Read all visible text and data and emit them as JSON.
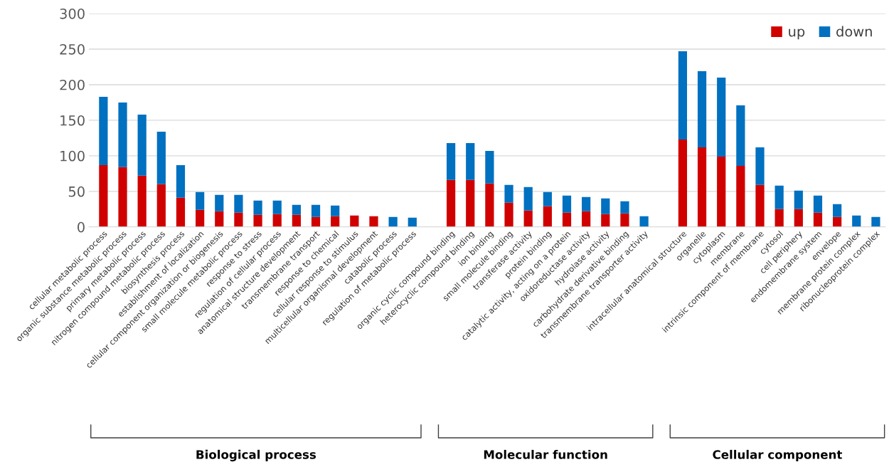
{
  "chart_data": {
    "type": "bar",
    "stacked": true,
    "grid": "y",
    "legend": "top right",
    "categories": [
      "cellular metabolic process",
      "organic substance metabolic process",
      "primary metabolic process",
      "nitrogen compound metabolic process",
      "biosynthesis process",
      "establishment of localization",
      "cellular component organization or biogenesis",
      "small molecule metabolic process",
      "response to stress",
      "regulation of cellular process",
      "anatomical structure development",
      "transmembrane transport",
      "response to chemical",
      "cellular response to stimulus",
      "multicellular organismal development",
      "catabolic process",
      "regulation of metabolic process",
      null,
      "organic cyclic compound binding",
      "heterocyclic compound binding",
      "ion binding",
      "small molecule binding",
      "transferase activity",
      "protein binding",
      "catalytic activity, acting on a protein",
      "oxidoreductase activity",
      "hydrolase activity",
      "carbohydrate derivative binding",
      "transmembrane transporter activity",
      null,
      "intracellular anatomical structure",
      "organelle",
      "cytoplasm",
      "membrane",
      "intrinsic component of membrane",
      "cytosol",
      "cell periphery",
      "endomembrane system",
      "envelope",
      "membrane protein complex",
      "ribonucleoprotein complex"
    ],
    "series": [
      {
        "name": "up",
        "color": "#d00000",
        "values": [
          87,
          84,
          72,
          60,
          41,
          24,
          22,
          20,
          17,
          18,
          17,
          14,
          15,
          16,
          15,
          0,
          0,
          null,
          66,
          66,
          61,
          34,
          23,
          29,
          20,
          22,
          18,
          19,
          0,
          null,
          123,
          112,
          99,
          86,
          59,
          25,
          25,
          20,
          14,
          0,
          0
        ]
      },
      {
        "name": "down",
        "color": "#0070c0",
        "values": [
          96,
          91,
          86,
          74,
          46,
          25,
          23,
          25,
          20,
          19,
          14,
          17,
          15,
          0,
          0,
          14,
          13,
          null,
          52,
          52,
          46,
          25,
          33,
          20,
          24,
          20,
          22,
          17,
          15,
          null,
          124,
          107,
          111,
          85,
          53,
          33,
          26,
          24,
          18,
          16,
          14
        ]
      }
    ],
    "ylim": [
      0,
      300
    ],
    "yticks": [
      0,
      50,
      100,
      150,
      200,
      250,
      300
    ],
    "annotations": [
      "Biological process",
      "Molecular function",
      "Cellular component"
    ]
  }
}
